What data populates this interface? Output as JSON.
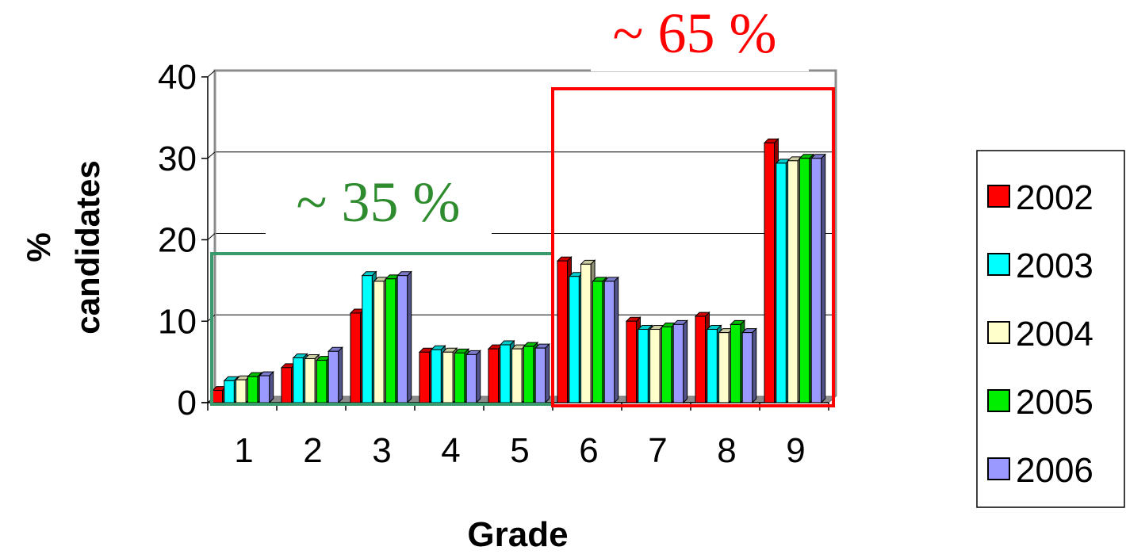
{
  "chart_data": {
    "type": "bar",
    "categories": [
      "1",
      "2",
      "3",
      "4",
      "5",
      "6",
      "7",
      "8",
      "9"
    ],
    "series": [
      {
        "name": "2002",
        "values": [
          1.5,
          4.3,
          11.0,
          6.2,
          6.6,
          17.4,
          10.0,
          10.6,
          31.9
        ]
      },
      {
        "name": "2003",
        "values": [
          2.7,
          5.5,
          15.6,
          6.5,
          7.1,
          15.5,
          9.0,
          9.0,
          29.4
        ]
      },
      {
        "name": "2004",
        "values": [
          2.8,
          5.4,
          14.9,
          6.2,
          6.6,
          17.0,
          9.0,
          8.6,
          29.7
        ]
      },
      {
        "name": "2005",
        "values": [
          3.2,
          5.2,
          15.2,
          6.1,
          6.9,
          14.9,
          9.3,
          9.6,
          30.0
        ]
      },
      {
        "name": "2006",
        "values": [
          3.3,
          6.3,
          15.6,
          5.9,
          6.7,
          14.9,
          9.6,
          8.6,
          30.0
        ]
      }
    ],
    "colors": {
      "2002": "#ff0000",
      "2003": "#00ffff",
      "2004": "#ffffcc",
      "2005": "#00ee00",
      "2006": "#9999ff"
    },
    "xlabel": "Grade",
    "ylabel": "% candidates",
    "ylabel_lines": [
      "%",
      "candidates"
    ],
    "ylim": [
      0,
      40
    ],
    "yticks": [
      "0",
      "10",
      "20",
      "30",
      "40"
    ],
    "grid": true,
    "legend_position": "right",
    "annotations": [
      {
        "text": "~ 35 %",
        "color": "#2e8b2e",
        "spans_grades": [
          "1",
          "5"
        ]
      },
      {
        "text": "~ 65 %",
        "color": "#ff0000",
        "spans_grades": [
          "6",
          "9"
        ]
      }
    ]
  }
}
